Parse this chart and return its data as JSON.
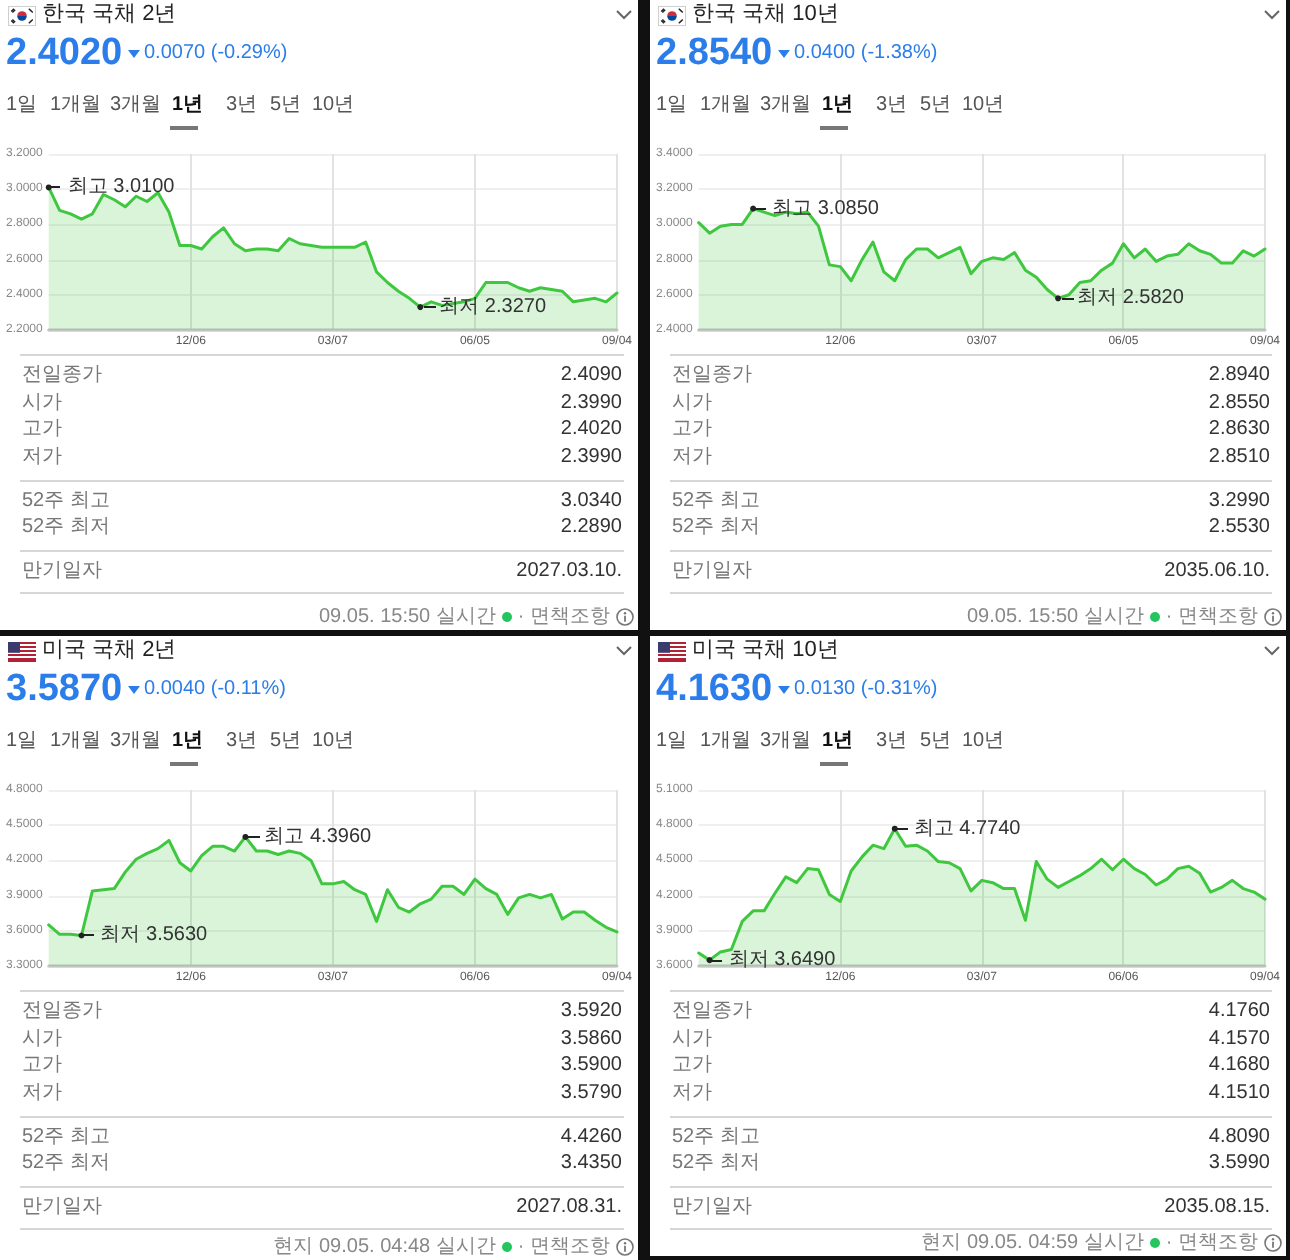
{
  "chart_data": [
    {
      "type": "area",
      "title": "한국 국채 2년",
      "subtitle": "2.4020",
      "color": "#3fc83f",
      "marker": "none",
      "grid": true,
      "categories": [
        null,
        null,
        null,
        null,
        null,
        null,
        null,
        null,
        null,
        null,
        null,
        null,
        null,
        "12/06",
        null,
        null,
        null,
        null,
        null,
        null,
        null,
        null,
        null,
        null,
        null,
        null,
        "03/07",
        null,
        null,
        null,
        null,
        null,
        null,
        null,
        null,
        null,
        null,
        null,
        null,
        "06/05",
        null,
        null,
        null,
        null,
        null,
        null,
        null,
        null,
        null,
        null,
        null,
        null,
        "09/04"
      ],
      "values": [
        3.01,
        2.88,
        2.86,
        2.83,
        2.86,
        2.97,
        2.94,
        2.9,
        2.96,
        2.93,
        2.98,
        2.87,
        2.68,
        2.68,
        2.66,
        2.73,
        2.78,
        2.69,
        2.65,
        2.66,
        2.66,
        2.65,
        2.72,
        2.69,
        2.68,
        2.67,
        2.67,
        2.67,
        2.67,
        2.7,
        2.53,
        2.47,
        2.42,
        2.38,
        2.33,
        2.36,
        2.34,
        2.35,
        2.36,
        2.38,
        2.47,
        2.47,
        2.47,
        2.44,
        2.42,
        2.44,
        2.43,
        2.42,
        2.36,
        2.37,
        2.38,
        2.36,
        2.41
      ],
      "ylim": [
        2.2,
        3.2
      ],
      "yticks": [
        {
          "value": 2.2,
          "label": "2.2000"
        },
        {
          "value": 2.4,
          "label": "2.4000"
        },
        {
          "value": 2.6,
          "label": "2.6000"
        },
        {
          "value": 2.8,
          "label": "2.8000"
        },
        {
          "value": 3.0,
          "label": "3.0000"
        },
        {
          "value": 3.2,
          "label": "3.2000"
        }
      ],
      "annotations": [
        "0.0070 (-0.29%)",
        "1일",
        "1개월",
        "3개월",
        "1년",
        "3년",
        "5년",
        "10년",
        "전일종가",
        "2.4090",
        "시가",
        "2.3990",
        "고가",
        "2.4020",
        "저가",
        "2.3990",
        "52주 최고",
        "3.0340",
        "52주 최저",
        "2.2890",
        "만기일자",
        "2027.03.10.",
        "09.05. 15:50 실시간",
        "· 면책조항",
        "최고 3.0100",
        "최저 2.3270"
      ]
    },
    {
      "type": "area",
      "title": "한국 국채 10년",
      "subtitle": "2.8540",
      "color": "#3fc83f",
      "marker": "none",
      "grid": true,
      "categories": [
        null,
        null,
        null,
        null,
        null,
        null,
        null,
        null,
        null,
        null,
        null,
        null,
        null,
        "12/06",
        null,
        null,
        null,
        null,
        null,
        null,
        null,
        null,
        null,
        null,
        null,
        null,
        "03/07",
        null,
        null,
        null,
        null,
        null,
        null,
        null,
        null,
        null,
        null,
        null,
        null,
        "06/05",
        null,
        null,
        null,
        null,
        null,
        null,
        null,
        null,
        null,
        null,
        null,
        null,
        "09/04"
      ],
      "values": [
        3.01,
        2.95,
        2.99,
        3.0,
        3.0,
        3.09,
        3.07,
        3.05,
        3.07,
        3.06,
        3.07,
        2.99,
        2.77,
        2.76,
        2.68,
        2.8,
        2.9,
        2.73,
        2.68,
        2.8,
        2.86,
        2.86,
        2.81,
        2.84,
        2.87,
        2.72,
        2.79,
        2.81,
        2.8,
        2.84,
        2.74,
        2.7,
        2.63,
        2.58,
        2.6,
        2.67,
        2.68,
        2.74,
        2.78,
        2.89,
        2.81,
        2.86,
        2.79,
        2.82,
        2.83,
        2.89,
        2.85,
        2.83,
        2.78,
        2.78,
        2.85,
        2.82,
        2.86
      ],
      "ylim": [
        2.4,
        3.4
      ],
      "yticks": [
        {
          "value": 2.4,
          "label": "2.4000"
        },
        {
          "value": 2.6,
          "label": "2.6000"
        },
        {
          "value": 2.8,
          "label": "2.8000"
        },
        {
          "value": 3.0,
          "label": "3.0000"
        },
        {
          "value": 3.2,
          "label": "3.2000"
        },
        {
          "value": 3.4,
          "label": "3.4000"
        }
      ],
      "annotations": [
        "0.0400 (-1.38%)",
        "1일",
        "1개월",
        "3개월",
        "1년",
        "3년",
        "5년",
        "10년",
        "전일종가",
        "2.8940",
        "시가",
        "2.8550",
        "고가",
        "2.8630",
        "저가",
        "2.8510",
        "52주 최고",
        "3.2990",
        "52주 최저",
        "2.5530",
        "만기일자",
        "2035.06.10.",
        "09.05. 15:50 실시간",
        "· 면책조항",
        "최고 3.0850",
        "최저 2.5820"
      ]
    },
    {
      "type": "area",
      "title": "미국 국채 2년",
      "subtitle": "3.5870",
      "color": "#3fc83f",
      "marker": "none",
      "grid": true,
      "categories": [
        null,
        null,
        null,
        null,
        null,
        null,
        null,
        null,
        null,
        null,
        null,
        null,
        null,
        "12/06",
        null,
        null,
        null,
        null,
        null,
        null,
        null,
        null,
        null,
        null,
        null,
        null,
        "03/07",
        null,
        null,
        null,
        null,
        null,
        null,
        null,
        null,
        null,
        null,
        null,
        null,
        "06/06",
        null,
        null,
        null,
        null,
        null,
        null,
        null,
        null,
        null,
        null,
        null,
        null,
        "09/04"
      ],
      "values": [
        3.65,
        3.57,
        3.57,
        3.56,
        3.94,
        3.95,
        3.96,
        4.1,
        4.21,
        4.26,
        4.3,
        4.37,
        4.18,
        4.11,
        4.24,
        4.32,
        4.32,
        4.28,
        4.4,
        4.28,
        4.28,
        4.25,
        4.28,
        4.26,
        4.2,
        4.0,
        4.0,
        4.02,
        3.95,
        3.91,
        3.68,
        3.95,
        3.8,
        3.76,
        3.83,
        3.87,
        3.98,
        3.98,
        3.91,
        4.04,
        3.96,
        3.91,
        3.74,
        3.88,
        3.91,
        3.88,
        3.91,
        3.7,
        3.76,
        3.76,
        3.69,
        3.63,
        3.59
      ],
      "ylim": [
        3.3,
        4.8
      ],
      "yticks": [
        {
          "value": 3.3,
          "label": "3.3000"
        },
        {
          "value": 3.6,
          "label": "3.6000"
        },
        {
          "value": 3.9,
          "label": "3.9000"
        },
        {
          "value": 4.2,
          "label": "4.2000"
        },
        {
          "value": 4.5,
          "label": "4.5000"
        },
        {
          "value": 4.8,
          "label": "4.8000"
        }
      ],
      "annotations": [
        "0.0040 (-0.11%)",
        "1일",
        "1개월",
        "3개월",
        "1년",
        "3년",
        "5년",
        "10년",
        "전일종가",
        "3.5920",
        "시가",
        "3.5860",
        "고가",
        "3.5900",
        "저가",
        "3.5790",
        "52주 최고",
        "4.4260",
        "52주 최저",
        "3.4350",
        "만기일자",
        "2027.08.31.",
        "현지 09.05. 04:48 실시간",
        "· 면책조항",
        "최고 4.3960",
        "최저 3.5630"
      ]
    },
    {
      "type": "area",
      "title": "미국 국채 10년",
      "subtitle": "4.1630",
      "color": "#3fc83f",
      "marker": "none",
      "grid": true,
      "categories": [
        null,
        null,
        null,
        null,
        null,
        null,
        null,
        null,
        null,
        null,
        null,
        null,
        null,
        "12/06",
        null,
        null,
        null,
        null,
        null,
        null,
        null,
        null,
        null,
        null,
        null,
        null,
        "03/07",
        null,
        null,
        null,
        null,
        null,
        null,
        null,
        null,
        null,
        null,
        null,
        null,
        "06/06",
        null,
        null,
        null,
        null,
        null,
        null,
        null,
        null,
        null,
        null,
        null,
        null,
        "09/04"
      ],
      "values": [
        3.71,
        3.65,
        3.72,
        3.74,
        3.98,
        4.07,
        4.07,
        4.22,
        4.36,
        4.31,
        4.43,
        4.42,
        4.21,
        4.15,
        4.41,
        4.53,
        4.63,
        4.6,
        4.77,
        4.62,
        4.63,
        4.58,
        4.49,
        4.48,
        4.43,
        4.24,
        4.33,
        4.31,
        4.26,
        4.26,
        3.99,
        4.49,
        4.34,
        4.27,
        4.32,
        4.37,
        4.43,
        4.51,
        4.42,
        4.51,
        4.43,
        4.38,
        4.29,
        4.34,
        4.43,
        4.45,
        4.39,
        4.23,
        4.27,
        4.33,
        4.26,
        4.23,
        4.17
      ],
      "ylim": [
        3.6,
        5.1
      ],
      "yticks": [
        {
          "value": 3.6,
          "label": "3.6000"
        },
        {
          "value": 3.9,
          "label": "3.9000"
        },
        {
          "value": 4.2,
          "label": "4.2000"
        },
        {
          "value": 4.5,
          "label": "4.5000"
        },
        {
          "value": 4.8,
          "label": "4.8000"
        },
        {
          "value": 5.1,
          "label": "5.1000"
        }
      ],
      "annotations": [
        "0.0130 (-0.31%)",
        "1일",
        "1개월",
        "3개월",
        "1년",
        "3년",
        "5년",
        "10년",
        "전일종가",
        "4.1760",
        "시가",
        "4.1570",
        "고가",
        "4.1680",
        "저가",
        "4.1510",
        "52주 최고",
        "4.8090",
        "52주 최저",
        "3.5990",
        "만기일자",
        "2035.08.15.",
        "현지 09.05. 04:59 실시간",
        "· 면책조항",
        "최고 4.7740",
        "최저 3.6490"
      ]
    }
  ]
}
